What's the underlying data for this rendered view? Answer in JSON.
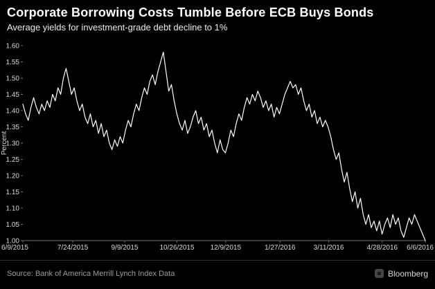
{
  "chart_data": {
    "type": "line",
    "title": "Corporate Borrowing Costs Tumble Before ECB Buys Bonds",
    "subtitle": "Average yields for investment-grade debt decline to 1%",
    "ylabel": "Percent",
    "ylim": [
      1.0,
      1.6
    ],
    "grid": false,
    "legend_position": "none",
    "y_ticks": [
      "1.60",
      "1.55",
      "1.50",
      "1.45",
      "1.40",
      "1.35",
      "1.30",
      "1.25",
      "1.20",
      "1.15",
      "1.10",
      "1.05",
      "1.00"
    ],
    "x_ticks": [
      {
        "label": "6/9/2015",
        "pos": 0
      },
      {
        "label": "7/24/2015",
        "pos": 0.124
      },
      {
        "label": "9/9/2015",
        "pos": 0.253
      },
      {
        "label": "10/26/2015",
        "pos": 0.383
      },
      {
        "label": "12/9/2015",
        "pos": 0.504
      },
      {
        "label": "1/27/2016",
        "pos": 0.639
      },
      {
        "label": "3/11/2016",
        "pos": 0.76
      },
      {
        "label": "4/28/2016",
        "pos": 0.893
      },
      {
        "label": "6/6/2016",
        "pos": 1
      }
    ],
    "values": [
      1.42,
      1.39,
      1.37,
      1.41,
      1.44,
      1.41,
      1.39,
      1.42,
      1.4,
      1.43,
      1.41,
      1.45,
      1.43,
      1.47,
      1.45,
      1.5,
      1.53,
      1.49,
      1.45,
      1.47,
      1.43,
      1.4,
      1.42,
      1.38,
      1.36,
      1.39,
      1.35,
      1.37,
      1.33,
      1.36,
      1.32,
      1.34,
      1.3,
      1.28,
      1.31,
      1.29,
      1.32,
      1.3,
      1.34,
      1.37,
      1.35,
      1.39,
      1.42,
      1.4,
      1.44,
      1.47,
      1.45,
      1.49,
      1.51,
      1.48,
      1.52,
      1.55,
      1.58,
      1.52,
      1.46,
      1.48,
      1.43,
      1.39,
      1.36,
      1.34,
      1.37,
      1.33,
      1.35,
      1.38,
      1.4,
      1.36,
      1.38,
      1.34,
      1.36,
      1.32,
      1.34,
      1.3,
      1.27,
      1.31,
      1.28,
      1.27,
      1.3,
      1.34,
      1.32,
      1.36,
      1.39,
      1.37,
      1.41,
      1.44,
      1.42,
      1.45,
      1.43,
      1.46,
      1.44,
      1.41,
      1.43,
      1.4,
      1.42,
      1.38,
      1.41,
      1.39,
      1.42,
      1.45,
      1.47,
      1.49,
      1.47,
      1.48,
      1.45,
      1.47,
      1.43,
      1.4,
      1.42,
      1.38,
      1.4,
      1.36,
      1.38,
      1.35,
      1.37,
      1.35,
      1.32,
      1.28,
      1.25,
      1.27,
      1.22,
      1.18,
      1.21,
      1.16,
      1.12,
      1.15,
      1.1,
      1.13,
      1.08,
      1.05,
      1.08,
      1.04,
      1.06,
      1.03,
      1.06,
      1.02,
      1.05,
      1.07,
      1.04,
      1.08,
      1.05,
      1.07,
      1.03,
      1.01,
      1.04,
      1.07,
      1.05,
      1.08,
      1.06,
      1.04,
      1.02,
      1.0
    ],
    "colors": {
      "line": "#ffffff",
      "background": "#000000",
      "tick_text": "#d9d9d9",
      "axis": "#6e6e6e"
    }
  },
  "footer": {
    "source": "Source: Bank of America Merrill Lynch Index Data",
    "brand": "Bloomberg"
  }
}
